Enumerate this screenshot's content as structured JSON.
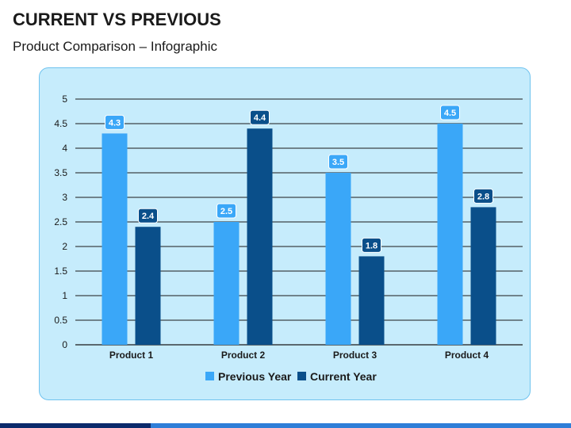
{
  "slide": {
    "title": "CURRENT VS PREVIOUS",
    "subtitle": "Product Comparison – Infographic"
  },
  "colors": {
    "panel_bg": "#c6ecfc",
    "previous_year": "#3aa7f8",
    "current_year": "#0a4f8a",
    "footer_dark": "#0b2a6b",
    "footer_light": "#2f7ed8"
  },
  "chart_data": {
    "type": "bar",
    "categories": [
      "Product 1",
      "Product 2",
      "Product 3",
      "Product  4"
    ],
    "series": [
      {
        "name": "Previous Year",
        "values": [
          4.3,
          2.5,
          3.5,
          4.5
        ]
      },
      {
        "name": "Current Year",
        "values": [
          2.4,
          4.4,
          1.8,
          2.8
        ]
      }
    ],
    "ylim": [
      0,
      5
    ],
    "yticks": [
      "0",
      "0.5",
      "1",
      "1.5",
      "2",
      "2.5",
      "3",
      "3.5",
      "4",
      "4.5",
      "5"
    ],
    "data_labels": [
      [
        "4.3",
        "2.5",
        "3.5",
        "4.5"
      ],
      [
        "2.4",
        "4.4",
        "1.8",
        "2.8"
      ]
    ],
    "grid": true,
    "legend": "bottom"
  }
}
